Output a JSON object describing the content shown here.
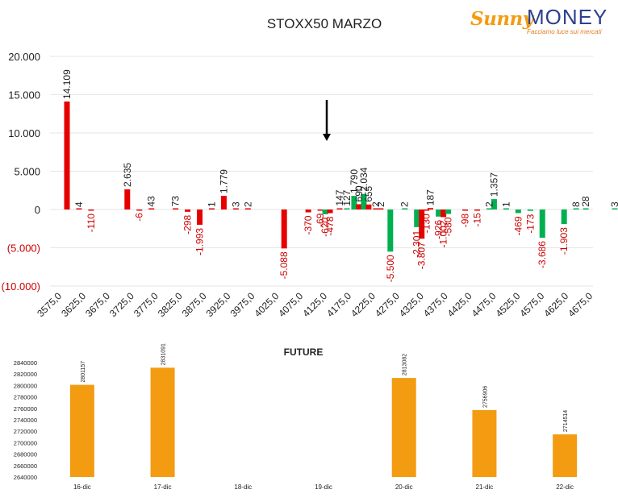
{
  "logo": {
    "brand_sunny": "Sunny",
    "brand_money": "MONEY",
    "tagline": "Facciamo luce sui mercati"
  },
  "colors": {
    "call": "#00b050",
    "put": "#e60000",
    "future_bar": "#f39c12",
    "text": "#222222",
    "negative_tick": "#cc0000",
    "grid": "#e6e6e6"
  },
  "chart_data": [
    {
      "type": "bar",
      "title": "STOXX50 MARZO",
      "xlabel": "",
      "ylabel": "",
      "ylim": [
        -10000,
        20000
      ],
      "yticks": [
        {
          "value": 20000,
          "label": "20.000"
        },
        {
          "value": 15000,
          "label": "15.000"
        },
        {
          "value": 10000,
          "label": "10.000"
        },
        {
          "value": 5000,
          "label": "5.000"
        },
        {
          "value": 0,
          "label": "0"
        },
        {
          "value": -5000,
          "label": "(5.000)"
        },
        {
          "value": -10000,
          "label": "(10.000)"
        }
      ],
      "grid": true,
      "annotation": {
        "type": "arrow",
        "direction": "down",
        "at_x": 4200
      },
      "xticks": [
        "3575,0",
        "3625,0",
        "3675,0",
        "3725,0",
        "3775,0",
        "3825,0",
        "3875,0",
        "3925,0",
        "3975,0",
        "4025,0",
        "4075,0",
        "4125,0",
        "4175,0",
        "4225,0",
        "4275,0",
        "4325,0",
        "4375,0",
        "4425,0",
        "4475,0",
        "4525,0",
        "4575,0",
        "4625,0",
        "4675,0"
      ],
      "bars": [
        {
          "strike": 3575,
          "value": 14109,
          "label": "14.109",
          "color": "put"
        },
        {
          "strike": 3600,
          "value": 4,
          "label": "4",
          "color": "put"
        },
        {
          "strike": 3625,
          "value": -110,
          "label": "-110",
          "color": "put"
        },
        {
          "strike": 3700,
          "value": 2635,
          "label": "2.635",
          "color": "put"
        },
        {
          "strike": 3725,
          "value": -6,
          "label": "-6",
          "color": "put"
        },
        {
          "strike": 3750,
          "value": 43,
          "label": "43",
          "color": "put"
        },
        {
          "strike": 3800,
          "value": 73,
          "label": "73",
          "color": "put"
        },
        {
          "strike": 3825,
          "value": -298,
          "label": "-298",
          "color": "put"
        },
        {
          "strike": 3850,
          "value": -1993,
          "label": "-1.993",
          "color": "put"
        },
        {
          "strike": 3875,
          "value": 1,
          "label": "1",
          "color": "put"
        },
        {
          "strike": 3900,
          "value": 1779,
          "label": "1.779",
          "color": "put"
        },
        {
          "strike": 3925,
          "value": 3,
          "label": "3",
          "color": "put"
        },
        {
          "strike": 3950,
          "value": 2,
          "label": "2",
          "color": "put"
        },
        {
          "strike": 4025,
          "value": -5088,
          "label": "-5.088",
          "color": "put"
        },
        {
          "strike": 4075,
          "value": -370,
          "label": "-370",
          "color": "put"
        },
        {
          "strike": 4100,
          "value": -69,
          "label": "-69",
          "color": "put"
        },
        {
          "strike": 4110,
          "value": -620,
          "label": "-620",
          "color": "call"
        },
        {
          "strike": 4120,
          "value": -478,
          "label": "-478",
          "color": "put"
        },
        {
          "strike": 4140,
          "value": 147,
          "label": "147",
          "color": "put"
        },
        {
          "strike": 4155,
          "value": 127,
          "label": "127",
          "color": "call"
        },
        {
          "strike": 4170,
          "value": 1790,
          "label": "1.790",
          "color": "call"
        },
        {
          "strike": 4180,
          "value": 690,
          "label": "690",
          "color": "put"
        },
        {
          "strike": 4190,
          "value": 2034,
          "label": "2.034",
          "color": "call"
        },
        {
          "strike": 4200,
          "value": 655,
          "label": "655",
          "color": "put"
        },
        {
          "strike": 4215,
          "value": 2,
          "label": "2",
          "color": "put"
        },
        {
          "strike": 4225,
          "value": 2,
          "label": "2",
          "color": "put"
        },
        {
          "strike": 4245,
          "value": -5500,
          "label": "-5.500",
          "color": "call"
        },
        {
          "strike": 4275,
          "value": 2,
          "label": "2",
          "color": "call"
        },
        {
          "strike": 4300,
          "value": -2301,
          "label": "-2.301",
          "color": "call"
        },
        {
          "strike": 4310,
          "value": -3807,
          "label": "-3.807",
          "color": "put"
        },
        {
          "strike": 4320,
          "value": -130,
          "label": "-130",
          "color": "put"
        },
        {
          "strike": 4328,
          "value": 187,
          "label": "187",
          "color": "put"
        },
        {
          "strike": 4345,
          "value": -926,
          "label": "-926",
          "color": "call"
        },
        {
          "strike": 4355,
          "value": -1002,
          "label": "-1.002",
          "color": "put"
        },
        {
          "strike": 4365,
          "value": -580,
          "label": "-580",
          "color": "call"
        },
        {
          "strike": 4400,
          "value": -98,
          "label": "-98",
          "color": "put"
        },
        {
          "strike": 4425,
          "value": -15,
          "label": "-15",
          "color": "put"
        },
        {
          "strike": 4450,
          "value": 2,
          "label": "2",
          "color": "call"
        },
        {
          "strike": 4460,
          "value": 1357,
          "label": "1.357",
          "color": "call"
        },
        {
          "strike": 4485,
          "value": 1,
          "label": "1",
          "color": "call"
        },
        {
          "strike": 4510,
          "value": -469,
          "label": "-469",
          "color": "call"
        },
        {
          "strike": 4535,
          "value": -173,
          "label": "-173",
          "color": "call"
        },
        {
          "strike": 4560,
          "value": -3686,
          "label": "-3.686",
          "color": "call"
        },
        {
          "strike": 4605,
          "value": -1903,
          "label": "-1.903",
          "color": "call"
        },
        {
          "strike": 4630,
          "value": 8,
          "label": "8",
          "color": "call"
        },
        {
          "strike": 4650,
          "value": 28,
          "label": "28",
          "color": "call"
        },
        {
          "strike": 4710,
          "value": 3,
          "label": "3",
          "color": "call"
        }
      ]
    },
    {
      "type": "bar",
      "title": "FUTURE",
      "xlabel": "",
      "ylabel": "",
      "ylim": [
        2640000,
        2840000
      ],
      "yticks": [
        "2840000",
        "2820000",
        "2800000",
        "2780000",
        "2760000",
        "2740000",
        "2720000",
        "2700000",
        "2680000",
        "2660000",
        "2640000"
      ],
      "categories": [
        "16-dic",
        "17-dic",
        "18-dic",
        "19-dic",
        "20-dic",
        "21-dic",
        "22-dic"
      ],
      "values": [
        2801157,
        2831091,
        null,
        null,
        2813082,
        2756906,
        2714514
      ],
      "labels": [
        "2801157",
        "2831091",
        "",
        "",
        "2813082",
        "2756906",
        "2714514"
      ]
    }
  ]
}
